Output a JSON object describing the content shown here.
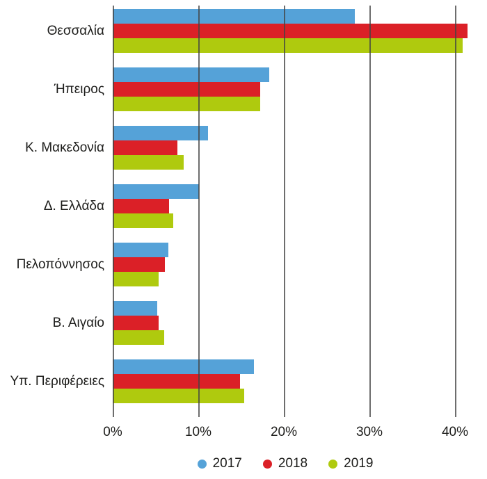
{
  "chart_data": {
    "type": "bar",
    "orientation": "horizontal",
    "title": "",
    "xlabel": "",
    "ylabel": "",
    "categories": [
      "Θεσσαλία",
      "Ήπειρος",
      "Κ. Μακεδονία",
      "Δ. Ελλάδα",
      "Πελοπόννησος",
      "Β. Αιγαίο",
      "Υπ. Περιφέρειες"
    ],
    "series": [
      {
        "name": "2017",
        "color": "#55a2d8",
        "values": [
          28.3,
          18.3,
          11.1,
          10.1,
          6.5,
          5.2,
          16.5
        ]
      },
      {
        "name": "2018",
        "color": "#db2027",
        "values": [
          41.5,
          17.2,
          7.6,
          6.6,
          6.1,
          5.4,
          14.9
        ]
      },
      {
        "name": "2019",
        "color": "#afca0e",
        "values": [
          40.9,
          17.2,
          8.3,
          7.1,
          5.4,
          6.0,
          15.4
        ]
      }
    ],
    "x_ticks": [
      "0%",
      "10%",
      "20%",
      "30%",
      "40%"
    ],
    "x_tick_values": [
      0,
      10,
      20,
      30,
      40
    ],
    "xlim": [
      0,
      43
    ],
    "unit": "%",
    "grid": "vertical-over-bars",
    "legend_position": "bottom-center"
  },
  "colors": {
    "series_2017": "#55a2d8",
    "series_2018": "#db2027",
    "series_2019": "#afca0e",
    "gridline": "#444444",
    "text": "#1d1d1b",
    "background": "#ffffff"
  }
}
